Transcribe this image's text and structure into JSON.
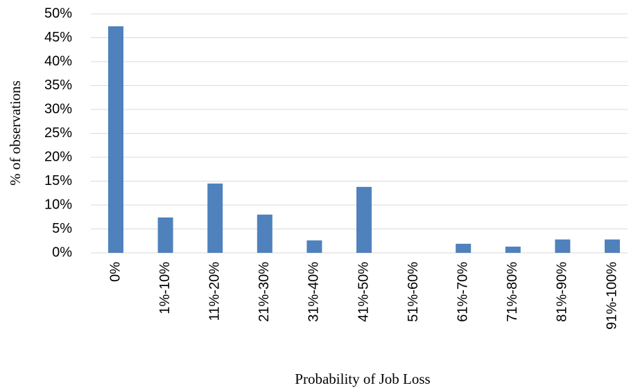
{
  "chart_data": {
    "type": "bar",
    "x_label": "Probability of Job Loss",
    "y_label": "% of observations",
    "categories": [
      "0%",
      "1%-10%",
      "11%-20%",
      "21%-30%",
      "31%-40%",
      "41%-50%",
      "51%-60%",
      "61%-70%",
      "71%-80%",
      "81%-90%",
      "91%-100%"
    ],
    "values": [
      47.4,
      7.4,
      14.5,
      8.0,
      2.6,
      13.8,
      0,
      1.9,
      1.3,
      2.8,
      2.8
    ],
    "color": "#4f81bd",
    "ylim": [
      0,
      50
    ],
    "yticks": [
      {
        "value": 0,
        "label": "0%"
      },
      {
        "value": 5,
        "label": "5%"
      },
      {
        "value": 10,
        "label": "10%"
      },
      {
        "value": 15,
        "label": "15%"
      },
      {
        "value": 20,
        "label": "20%"
      },
      {
        "value": 25,
        "label": "25%"
      },
      {
        "value": 30,
        "label": "30%"
      },
      {
        "value": 35,
        "label": "35%"
      },
      {
        "value": 40,
        "label": "40%"
      },
      {
        "value": 45,
        "label": "45%"
      },
      {
        "value": 50,
        "label": "50%"
      }
    ],
    "grid": true
  }
}
